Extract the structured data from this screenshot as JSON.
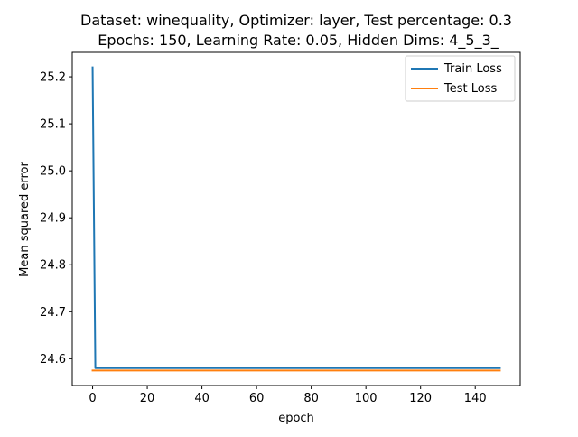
{
  "chart_data": {
    "type": "line",
    "title_line1": "Dataset: winequality, Optimizer: layer, Test percentage: 0.3",
    "title_line2": "Epochs: 150, Learning Rate: 0.05, Hidden Dims: 4_5_3_",
    "xlabel": "epoch",
    "ylabel": "Mean squared error",
    "xlim": [
      -7.45,
      156.45
    ],
    "ylim": [
      24.543,
      25.252
    ],
    "xticks": [
      0,
      20,
      40,
      60,
      80,
      100,
      120,
      140
    ],
    "yticks": [
      24.6,
      24.7,
      24.8,
      24.9,
      25.0,
      25.1,
      25.2
    ],
    "ytick_labels": [
      "24.6",
      "24.7",
      "24.8",
      "24.9",
      "25.0",
      "25.1",
      "25.2"
    ],
    "legend_position": "top-right",
    "grid": false,
    "series": [
      {
        "name": "Train Loss",
        "color": "#1f77b4",
        "x": [
          0,
          1,
          2,
          149
        ],
        "y": [
          25.22,
          24.58,
          24.58,
          24.58
        ]
      },
      {
        "name": "Test Loss",
        "color": "#ff7f0e",
        "x": [
          0,
          149
        ],
        "y": [
          24.575,
          24.575
        ]
      }
    ]
  }
}
